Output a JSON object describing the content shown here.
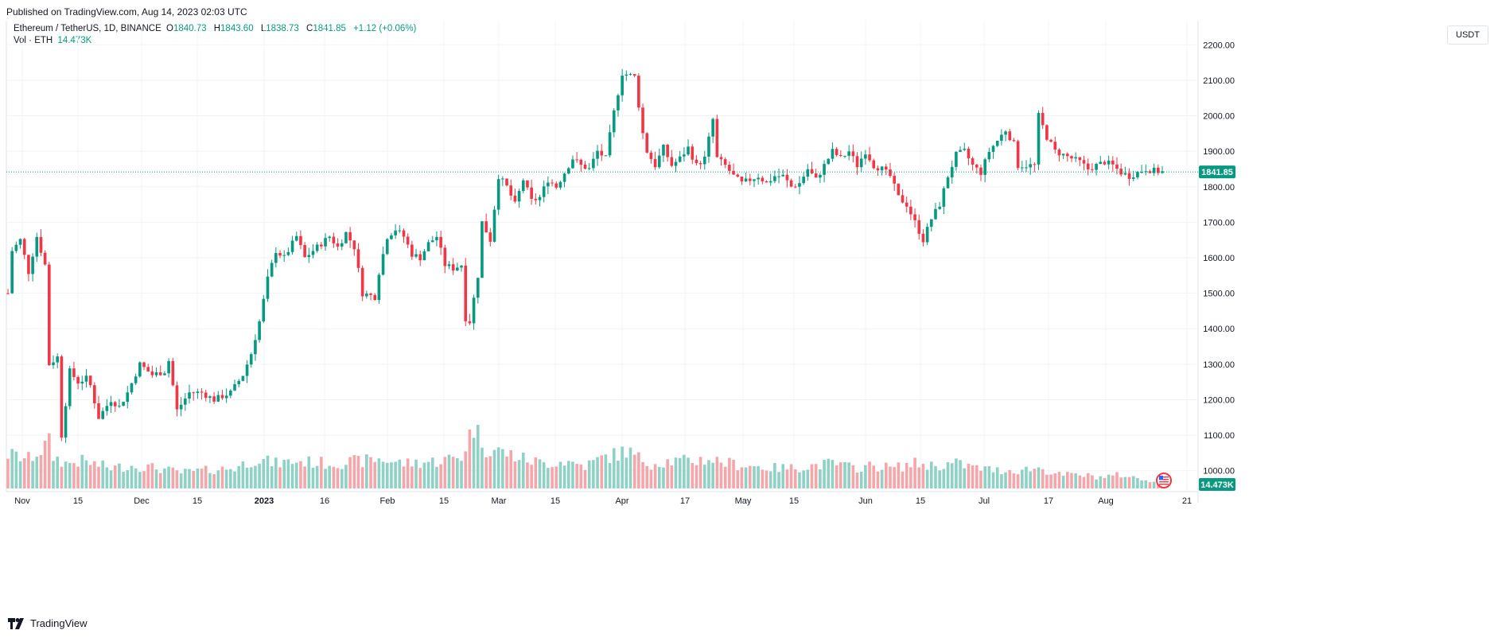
{
  "header": {
    "published": "Published on TradingView.com, Aug 14, 2023 02:03 UTC"
  },
  "legend": {
    "symbol": "Ethereum / TetherUS, 1D, BINANCE",
    "o_label": "O",
    "o_value": "1840.73",
    "h_label": "H",
    "h_value": "1843.60",
    "l_label": "L",
    "l_value": "1838.73",
    "c_label": "C",
    "c_value": "1841.85",
    "change": "+1.12 (+0.06%)",
    "vol_label": "Vol · ETH",
    "vol_value": "14.473K"
  },
  "currency": "USDT",
  "footer": {
    "brand": "TradingView"
  },
  "colors": {
    "up": "#089981",
    "down": "#f23645",
    "up_vol": "#8fd1c5",
    "down_vol": "#f5a6ab",
    "grid": "#f0f3fa",
    "last_price": "#089981"
  },
  "chart_data": {
    "type": "candlestick",
    "title": "Ethereum / TetherUS, 1D, BINANCE",
    "interval": "1D",
    "ylim": [
      950,
      2250
    ],
    "yticks": [
      "2200.00",
      "2100.00",
      "2000.00",
      "1900.00",
      "1800.00",
      "1700.00",
      "1600.00",
      "1500.00",
      "1400.00",
      "1300.00",
      "1200.00",
      "1100.00",
      "1000.00"
    ],
    "xticks": [
      "Nov",
      "15",
      "Dec",
      "15",
      "2023",
      "16",
      "Feb",
      "15",
      "Mar",
      "15",
      "Apr",
      "17",
      "May",
      "15",
      "Jun",
      "15",
      "Jul",
      "17",
      "Aug",
      "21"
    ],
    "last_price": "1841.85",
    "last_volume": "14.473K",
    "grid": true,
    "price_keypoints": [
      [
        0,
        1500
      ],
      [
        1,
        1620
      ],
      [
        3,
        1650
      ],
      [
        5,
        1560
      ],
      [
        7,
        1660
      ],
      [
        9,
        1580
      ],
      [
        10,
        1300
      ],
      [
        12,
        1320
      ],
      [
        13,
        1100
      ],
      [
        15,
        1280
      ],
      [
        17,
        1250
      ],
      [
        19,
        1260
      ],
      [
        20,
        1240
      ],
      [
        22,
        1150
      ],
      [
        25,
        1200
      ],
      [
        27,
        1180
      ],
      [
        29,
        1220
      ],
      [
        32,
        1300
      ],
      [
        35,
        1270
      ],
      [
        38,
        1280
      ],
      [
        39,
        1310
      ],
      [
        41,
        1170
      ],
      [
        44,
        1220
      ],
      [
        47,
        1220
      ],
      [
        50,
        1200
      ],
      [
        52,
        1210
      ],
      [
        54,
        1220
      ],
      [
        57,
        1270
      ],
      [
        59,
        1330
      ],
      [
        61,
        1420
      ],
      [
        63,
        1540
      ],
      [
        65,
        1620
      ],
      [
        67,
        1600
      ],
      [
        70,
        1660
      ],
      [
        72,
        1600
      ],
      [
        74,
        1620
      ],
      [
        76,
        1640
      ],
      [
        78,
        1660
      ],
      [
        80,
        1630
      ],
      [
        82,
        1670
      ],
      [
        84,
        1630
      ],
      [
        86,
        1500
      ],
      [
        89,
        1490
      ],
      [
        90,
        1560
      ],
      [
        92,
        1660
      ],
      [
        94,
        1680
      ],
      [
        96,
        1660
      ],
      [
        98,
        1610
      ],
      [
        100,
        1600
      ],
      [
        102,
        1640
      ],
      [
        104,
        1660
      ],
      [
        106,
        1580
      ],
      [
        108,
        1570
      ],
      [
        110,
        1580
      ],
      [
        111,
        1430
      ],
      [
        112,
        1420
      ],
      [
        114,
        1550
      ],
      [
        115,
        1700
      ],
      [
        117,
        1650
      ],
      [
        119,
        1830
      ],
      [
        121,
        1800
      ],
      [
        123,
        1750
      ],
      [
        125,
        1820
      ],
      [
        127,
        1760
      ],
      [
        129,
        1770
      ],
      [
        131,
        1820
      ],
      [
        133,
        1800
      ],
      [
        135,
        1840
      ],
      [
        137,
        1880
      ],
      [
        139,
        1860
      ],
      [
        141,
        1850
      ],
      [
        143,
        1900
      ],
      [
        145,
        1880
      ],
      [
        147,
        2010
      ],
      [
        149,
        2120
      ],
      [
        152,
        2110
      ],
      [
        154,
        1950
      ],
      [
        155,
        1900
      ],
      [
        157,
        1860
      ],
      [
        159,
        1910
      ],
      [
        161,
        1860
      ],
      [
        163,
        1880
      ],
      [
        165,
        1910
      ],
      [
        167,
        1860
      ],
      [
        169,
        1880
      ],
      [
        171,
        1990
      ],
      [
        172,
        1880
      ],
      [
        174,
        1860
      ],
      [
        176,
        1830
      ],
      [
        178,
        1810
      ],
      [
        180,
        1820
      ],
      [
        182,
        1830
      ],
      [
        184,
        1810
      ],
      [
        186,
        1830
      ],
      [
        188,
        1830
      ],
      [
        190,
        1800
      ],
      [
        192,
        1810
      ],
      [
        194,
        1850
      ],
      [
        196,
        1820
      ],
      [
        198,
        1860
      ],
      [
        200,
        1900
      ],
      [
        202,
        1880
      ],
      [
        204,
        1900
      ],
      [
        206,
        1860
      ],
      [
        208,
        1900
      ],
      [
        210,
        1860
      ],
      [
        212,
        1850
      ],
      [
        214,
        1830
      ],
      [
        216,
        1770
      ],
      [
        218,
        1750
      ],
      [
        220,
        1700
      ],
      [
        222,
        1650
      ],
      [
        224,
        1710
      ],
      [
        226,
        1750
      ],
      [
        228,
        1830
      ],
      [
        230,
        1890
      ],
      [
        232,
        1900
      ],
      [
        234,
        1860
      ],
      [
        236,
        1840
      ],
      [
        238,
        1900
      ],
      [
        240,
        1930
      ],
      [
        242,
        1960
      ],
      [
        244,
        1920
      ],
      [
        245,
        1860
      ],
      [
        247,
        1860
      ],
      [
        249,
        1860
      ],
      [
        250,
        2000
      ],
      [
        252,
        1940
      ],
      [
        254,
        1900
      ],
      [
        256,
        1890
      ],
      [
        258,
        1880
      ],
      [
        260,
        1870
      ],
      [
        262,
        1850
      ],
      [
        264,
        1860
      ],
      [
        266,
        1870
      ],
      [
        268,
        1860
      ],
      [
        270,
        1840
      ],
      [
        272,
        1830
      ],
      [
        274,
        1840
      ],
      [
        276,
        1850
      ],
      [
        278,
        1845
      ],
      [
        280,
        1841.85
      ]
    ],
    "volume_keypoints": [
      [
        0,
        0.75
      ],
      [
        5,
        0.65
      ],
      [
        8,
        0.85
      ],
      [
        10,
        1.0
      ],
      [
        11,
        0.7
      ],
      [
        14,
        0.55
      ],
      [
        18,
        0.6
      ],
      [
        25,
        0.45
      ],
      [
        30,
        0.5
      ],
      [
        36,
        0.45
      ],
      [
        42,
        0.35
      ],
      [
        48,
        0.4
      ],
      [
        55,
        0.45
      ],
      [
        60,
        0.65
      ],
      [
        65,
        0.55
      ],
      [
        70,
        0.6
      ],
      [
        78,
        0.55
      ],
      [
        86,
        0.6
      ],
      [
        90,
        0.65
      ],
      [
        96,
        0.55
      ],
      [
        104,
        0.6
      ],
      [
        110,
        0.7
      ],
      [
        113,
        1.4
      ],
      [
        116,
        0.9
      ],
      [
        120,
        0.8
      ],
      [
        125,
        0.65
      ],
      [
        130,
        0.55
      ],
      [
        135,
        0.6
      ],
      [
        140,
        0.5
      ],
      [
        145,
        0.7
      ],
      [
        148,
        0.75
      ],
      [
        150,
        0.85
      ],
      [
        152,
        0.7
      ],
      [
        156,
        0.55
      ],
      [
        160,
        0.6
      ],
      [
        165,
        0.6
      ],
      [
        170,
        0.65
      ],
      [
        175,
        0.55
      ],
      [
        180,
        0.5
      ],
      [
        185,
        0.45
      ],
      [
        190,
        0.45
      ],
      [
        195,
        0.5
      ],
      [
        200,
        0.55
      ],
      [
        205,
        0.45
      ],
      [
        210,
        0.5
      ],
      [
        215,
        0.45
      ],
      [
        220,
        0.55
      ],
      [
        225,
        0.5
      ],
      [
        230,
        0.55
      ],
      [
        235,
        0.45
      ],
      [
        240,
        0.4
      ],
      [
        245,
        0.4
      ],
      [
        250,
        0.45
      ],
      [
        255,
        0.3
      ],
      [
        260,
        0.3
      ],
      [
        265,
        0.25
      ],
      [
        270,
        0.3
      ],
      [
        275,
        0.2
      ],
      [
        280,
        0.15
      ]
    ]
  }
}
